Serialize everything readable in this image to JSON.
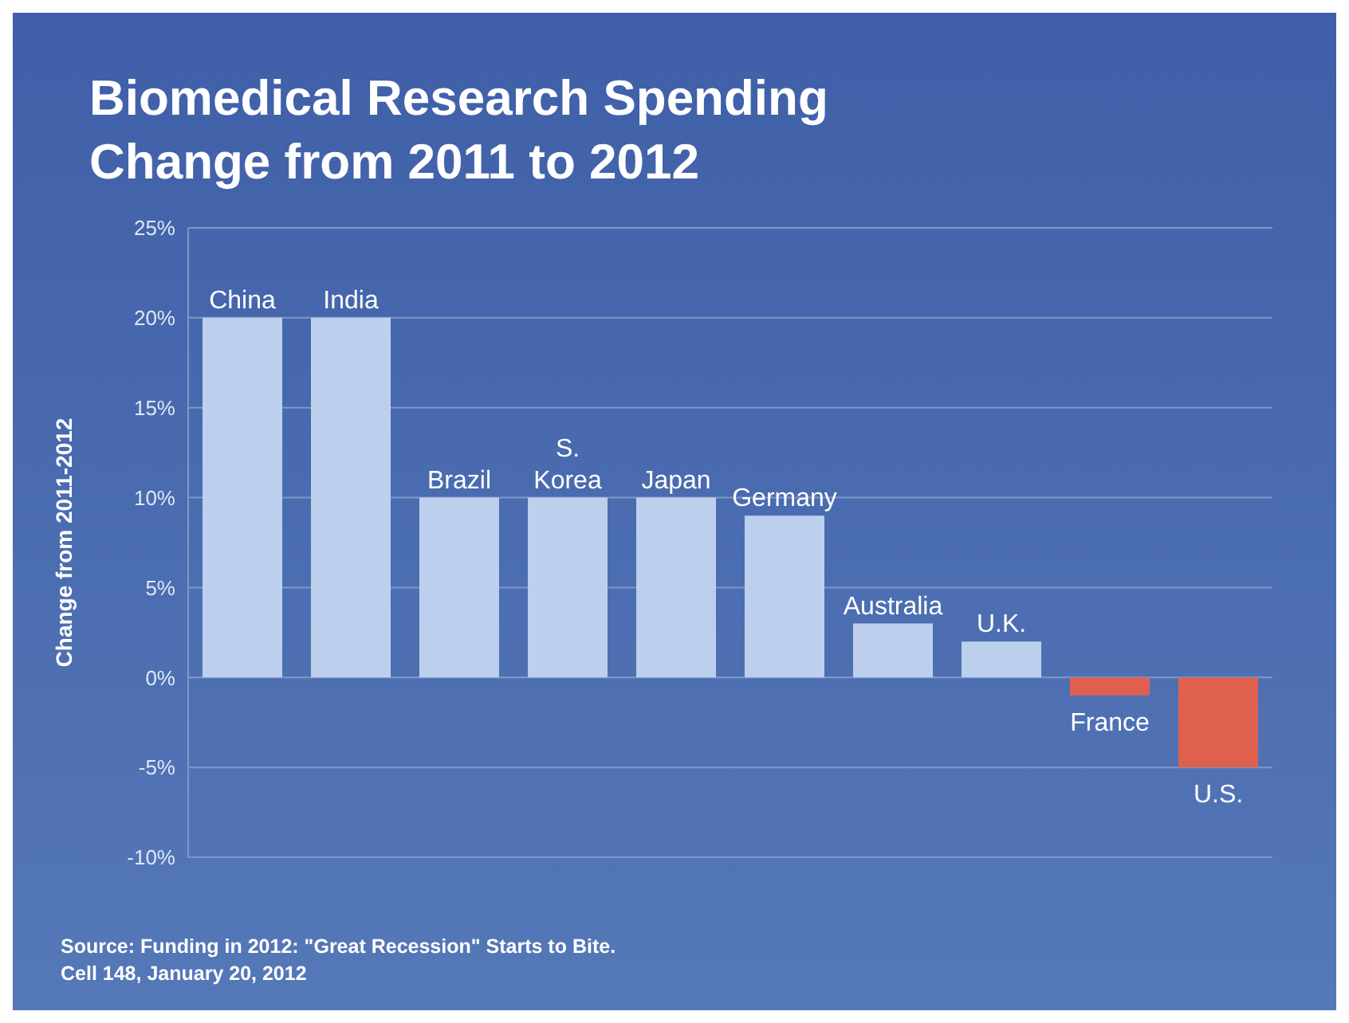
{
  "chart_data": {
    "type": "bar",
    "title": "Biomedical Research Spending\nChange from 2011 to 2012",
    "ylabel": "Change from 2011-2012",
    "categories": [
      "China",
      "India",
      "Brazil",
      "S. Korea",
      "Japan",
      "Germany",
      "Australia",
      "U.K.",
      "France",
      "U.S."
    ],
    "values": [
      20,
      20,
      10,
      10,
      10,
      9,
      3,
      2,
      -1,
      -5
    ],
    "colors": [
      "#bcd0ee",
      "#bcd0ee",
      "#bcd0ee",
      "#bcd0ee",
      "#bcd0ee",
      "#bcd0ee",
      "#bcd0ee",
      "#bcd0ee",
      "#e0604f",
      "#e0604f"
    ],
    "ylim": [
      -10,
      25
    ],
    "yticks": [
      {
        "value": -10,
        "label": "-10%"
      },
      {
        "value": -5,
        "label": "-5%"
      },
      {
        "value": 0,
        "label": "0%"
      },
      {
        "value": 5,
        "label": "5%"
      },
      {
        "value": 10,
        "label": "10%"
      },
      {
        "value": 15,
        "label": "15%"
      },
      {
        "value": 20,
        "label": "20%"
      },
      {
        "value": 25,
        "label": "25%"
      }
    ],
    "grid": "y",
    "tick_labels": "y",
    "annotations": [
      "Source: Funding in 2012: \"Great Recession\" Starts to Bite.\nCell 148, January 20, 2012"
    ]
  }
}
